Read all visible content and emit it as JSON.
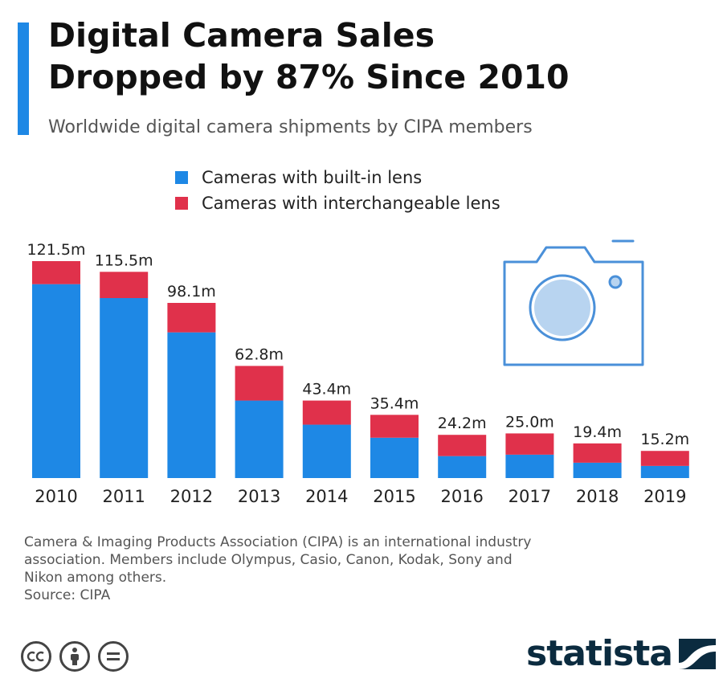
{
  "header": {
    "title_line1": "Digital Camera Sales",
    "title_line2": "Dropped by 87% Since 2010",
    "subtitle": "Worldwide digital camera shipments by CIPA members"
  },
  "colors": {
    "accent": "#1e88e5",
    "built_in": "#1e88e5",
    "interchangeable": "#e0314b",
    "icon": "#4a90d9",
    "brand": "#0b2b3f"
  },
  "chart_data": {
    "type": "bar",
    "stacked": true,
    "categories": [
      "2010",
      "2011",
      "2012",
      "2013",
      "2014",
      "2015",
      "2016",
      "2017",
      "2018",
      "2019"
    ],
    "series": [
      {
        "name": "Cameras with built-in lens",
        "values": [
          108.6,
          100.8,
          81.6,
          43.4,
          29.9,
          22.6,
          12.3,
          13.1,
          8.6,
          6.8
        ]
      },
      {
        "name": "Cameras with interchangeable lens",
        "values": [
          12.9,
          14.7,
          16.5,
          19.4,
          13.5,
          12.8,
          11.9,
          11.9,
          10.8,
          8.4
        ]
      }
    ],
    "totals": [
      121.5,
      115.5,
      98.1,
      62.8,
      43.4,
      35.4,
      24.2,
      25.0,
      19.4,
      15.2
    ],
    "data_labels": [
      "121.5m",
      "115.5m",
      "98.1m",
      "62.8m",
      "43.4m",
      "35.4m",
      "24.2m",
      "25.0m",
      "19.4m",
      "15.2m"
    ],
    "title": "Digital Camera Sales Dropped by 87% Since 2010",
    "xlabel": "",
    "ylabel": "",
    "ylim": [
      0,
      121.5
    ],
    "grid": false,
    "legend_position": "top"
  },
  "footnote": {
    "line1": "Camera & Imaging Products Association (CIPA) is an international industry",
    "line2": "association. Members include Olympus, Casio, Canon, Kodak, Sony and",
    "line3": "Nikon among others.",
    "source": "Source: CIPA"
  },
  "icons": [
    "camera-icon",
    "creative-commons-icon",
    "attribution-icon",
    "no-derivatives-icon",
    "statista-logo-icon"
  ],
  "brand": {
    "name": "statista"
  }
}
